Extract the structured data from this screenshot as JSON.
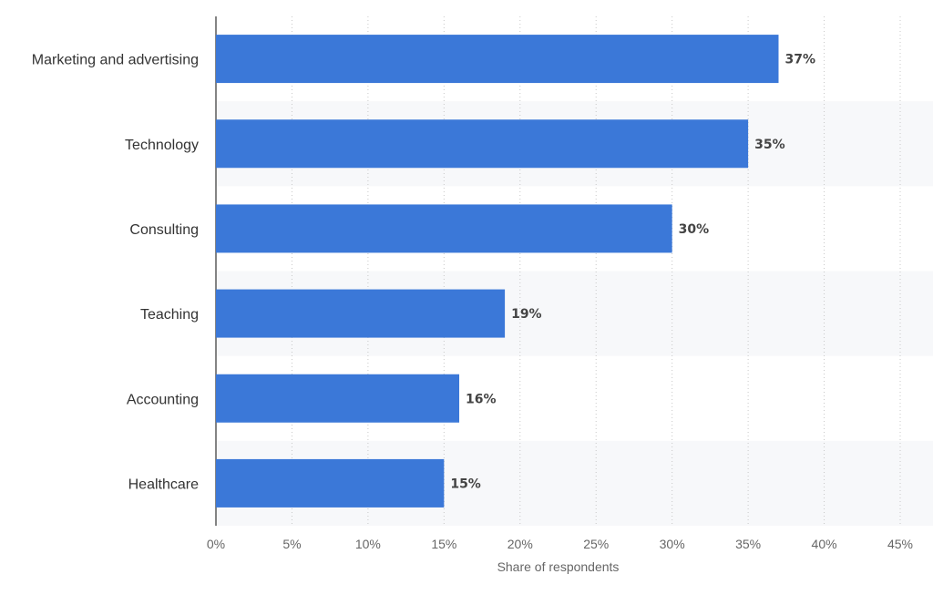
{
  "chart_data": {
    "type": "bar",
    "orientation": "horizontal",
    "categories": [
      "Marketing and advertising",
      "Technology",
      "Consulting",
      "Teaching",
      "Accounting",
      "Healthcare"
    ],
    "values": [
      37,
      35,
      30,
      19,
      16,
      15
    ],
    "value_labels": [
      "37%",
      "35%",
      "30%",
      "19%",
      "16%",
      "15%"
    ],
    "xlabel": "Share of respondents",
    "ylabel": "",
    "xlim": [
      0,
      45
    ],
    "xticks": [
      0,
      5,
      10,
      15,
      20,
      25,
      30,
      35,
      40,
      45
    ],
    "xtick_labels": [
      "0%",
      "5%",
      "10%",
      "15%",
      "20%",
      "25%",
      "30%",
      "35%",
      "40%",
      "45%"
    ],
    "grid": "vertical dotted",
    "alternating_row_bands": true,
    "bar_color": "#3b78d8",
    "band_color": "#f7f8fa"
  }
}
